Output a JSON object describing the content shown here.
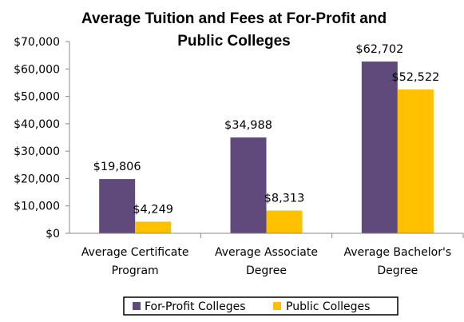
{
  "chart_data": {
    "type": "bar",
    "title": [
      "Average Tuition and Fees at For-Profit and",
      "Public Colleges"
    ],
    "categories": [
      [
        "Average Certificate",
        "Program"
      ],
      [
        "Average Associate",
        "Degree"
      ],
      [
        "Average Bachelor's",
        "Degree"
      ]
    ],
    "series": [
      {
        "name": "For-Profit Colleges",
        "color": "#604A7B",
        "values": [
          19806,
          34988,
          62702
        ],
        "labels": [
          "$19,806",
          "$34,988",
          "$62,702"
        ]
      },
      {
        "name": "Public Colleges",
        "color": "#FFC000",
        "values": [
          4249,
          8313,
          52522
        ],
        "labels": [
          "$4,249",
          "$8,313",
          "$52,522"
        ]
      }
    ],
    "ylim": [
      0,
      70000
    ],
    "yticks": [
      {
        "value": 0,
        "label": "$0"
      },
      {
        "value": 10000,
        "label": "$10,000"
      },
      {
        "value": 20000,
        "label": "$20,000"
      },
      {
        "value": 30000,
        "label": "$30,000"
      },
      {
        "value": 40000,
        "label": "$40,000"
      },
      {
        "value": 50000,
        "label": "$50,000"
      },
      {
        "value": 60000,
        "label": "$60,000"
      },
      {
        "value": 70000,
        "label": "$70,000"
      }
    ],
    "grid": false,
    "legend": "bottom"
  }
}
